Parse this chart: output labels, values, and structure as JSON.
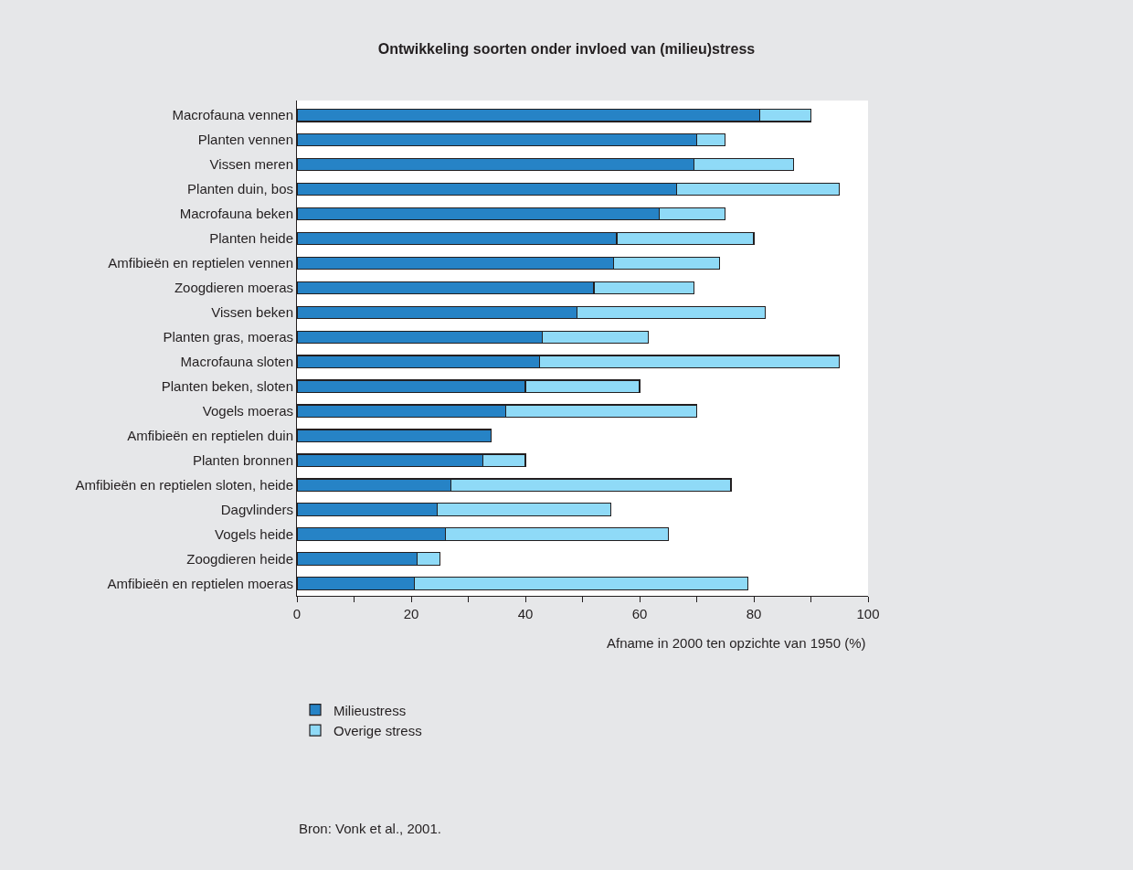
{
  "chart_data": {
    "type": "bar",
    "orientation": "horizontal",
    "stacked": true,
    "title": "Ontwikkeling soorten onder invloed van (milieu)stress",
    "xlabel": "Afname in 2000 ten opzichte van 1950 (%)",
    "categories": [
      "Macrofauna vennen",
      "Planten vennen",
      "Vissen meren",
      "Planten duin, bos",
      "Macrofauna beken",
      "Planten heide",
      "Amfibieën en reptielen vennen",
      "Zoogdieren moeras",
      "Vissen beken",
      "Planten gras, moeras",
      "Macrofauna sloten",
      "Planten beken, sloten",
      "Vogels moeras",
      "Amfibieën en reptielen duin",
      "Planten bronnen",
      "Amfibieën en reptielen sloten, heide",
      "Dagvlinders",
      "Vogels heide",
      "Zoogdieren heide",
      "Amfibieën en reptielen moeras"
    ],
    "series": [
      {
        "name": "Milieustress",
        "color": "#2683c6",
        "values": [
          81,
          70,
          69.5,
          66.5,
          63.5,
          56,
          55.5,
          52,
          49,
          43,
          42.5,
          40,
          36.5,
          34,
          32.5,
          27,
          24.5,
          26,
          21,
          20.5
        ]
      },
      {
        "name": "Overige stress",
        "color": "#8fdaf7",
        "values": [
          9,
          5,
          17.5,
          28.5,
          11.5,
          24,
          18.5,
          17.5,
          33,
          18.5,
          52.5,
          20,
          33.5,
          null,
          7.5,
          49,
          30.5,
          39,
          4,
          58.5
        ]
      }
    ],
    "xlim": [
      0,
      100
    ],
    "xticks": [
      0,
      {
        "value": 10,
        "label": null
      },
      20,
      {
        "value": 30,
        "label": null
      },
      40,
      {
        "value": 50,
        "label": null
      },
      60,
      {
        "value": 70,
        "label": null
      },
      80,
      {
        "value": 90,
        "label": null
      },
      100
    ],
    "legend": "bottom",
    "annotations": [
      "Bron: Vonk et al., 2001."
    ]
  }
}
